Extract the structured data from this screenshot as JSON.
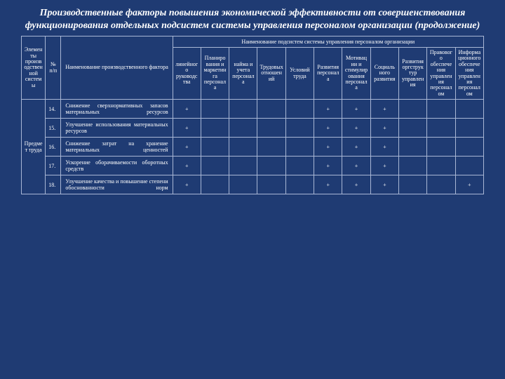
{
  "title": "Производственные факторы повышения экономической эффективности от совершенствования функционирования отдельных подсистем системы управления персоналом организации (продолжение)",
  "head": {
    "c1": "Элементы производственной системы",
    "c2": "№ п/п",
    "c3": "Наименование производственного фактора",
    "group": "Наименование подсистем системы управления персоналом организации",
    "subs": [
      "линейного руководства",
      "Планирования и маркетинга персонала",
      "найма и учета персонала",
      "Трудовых отношений",
      "Условий труда",
      "Развития персонала",
      "Мотивации и стимулирования персонала",
      "Социального развития",
      "Развития оргструктур управления",
      "Правового обеспечения управления персоналом",
      "Информационного обеспечения управления персоналом"
    ]
  },
  "rowgroup": "Предмет труда",
  "rows": [
    {
      "n": "14.",
      "name": "Снижение сверхнормативных запасов материальных ресурсов",
      "marks": [
        "+",
        "",
        "",
        "",
        "",
        "+",
        "+",
        "+",
        "",
        "",
        ""
      ]
    },
    {
      "n": "15.",
      "name": "Улучшение использования материальных ресурсов",
      "marks": [
        "+",
        "",
        "",
        "",
        "",
        "+",
        "+",
        "+",
        "",
        "",
        ""
      ]
    },
    {
      "n": "16.",
      "name": "Снижение затрат на хранение материальных ценностей",
      "marks": [
        "+",
        "",
        "",
        "",
        "",
        "+",
        "+",
        "+",
        "",
        "",
        ""
      ]
    },
    {
      "n": "17.",
      "name": "Ускорение оборачиваемости оборотных средств",
      "marks": [
        "+",
        "",
        "",
        "",
        "",
        "+",
        "+",
        "+",
        "",
        "",
        ""
      ]
    },
    {
      "n": "18.",
      "name": "Улучшение качества и повышение степени обоснованности норм",
      "marks": [
        "+",
        "",
        "",
        "",
        "",
        "+",
        "+",
        "+",
        "",
        "",
        "+"
      ]
    }
  ]
}
